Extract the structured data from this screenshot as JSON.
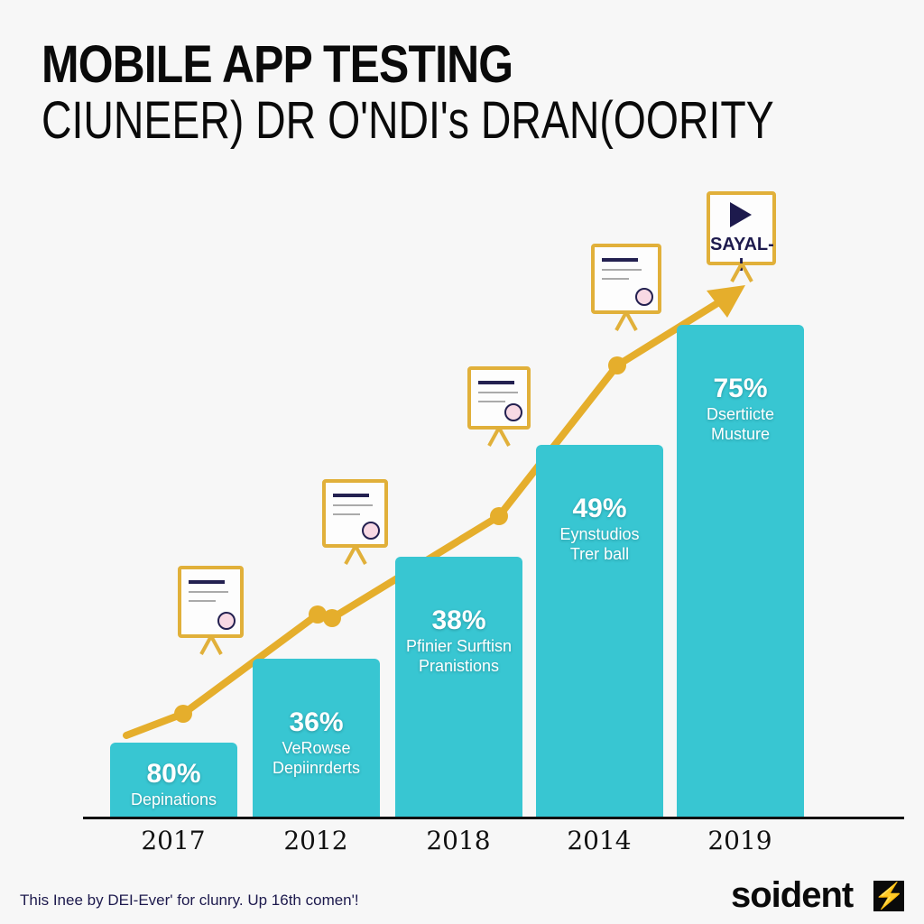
{
  "header": {
    "title": "MOBILE APP TESTING",
    "subtitle": "CIUNEER) DR O'NDI's DRAN(OORITY"
  },
  "chart_data": {
    "type": "bar",
    "title": "MOBILE APP TESTING",
    "subtitle": "CIUNEER) DR O'NDI's DRAN(OORITY",
    "categories": [
      "2017",
      "2012",
      "2018",
      "2014",
      "2019"
    ],
    "values": [
      80,
      36,
      38,
      49,
      75
    ],
    "value_labels": [
      "80%",
      "36%",
      "38%",
      "49%",
      "75%"
    ],
    "bar_labels": [
      [
        "Depinations"
      ],
      [
        "VeRowse",
        "Depiinrderts"
      ],
      [
        "Pfinier Surftisn",
        "Pranistions"
      ],
      [
        "Eynstudios",
        "Trer ball"
      ],
      [
        "Dsertiicte",
        "Musture"
      ]
    ],
    "overlay": {
      "type": "line",
      "trend": "increasing",
      "arrow": true
    },
    "grid": false,
    "legend": "none",
    "colors": {
      "bar": "#38c6d2",
      "line": "#e5ae2c",
      "text": "#0a0a0a"
    }
  },
  "easels": [
    {
      "icon": "document-certificate-icon"
    },
    {
      "icon": "document-certificate-icon"
    },
    {
      "icon": "document-certificate-icon"
    },
    {
      "icon": "document-certificate-icon"
    },
    {
      "icon": "play-icon",
      "label": "SAYAL-I"
    }
  ],
  "footer": {
    "text": "This Inee by DEI-Ever' for clunry. Up 16th comen'!",
    "logo": "soident"
  }
}
